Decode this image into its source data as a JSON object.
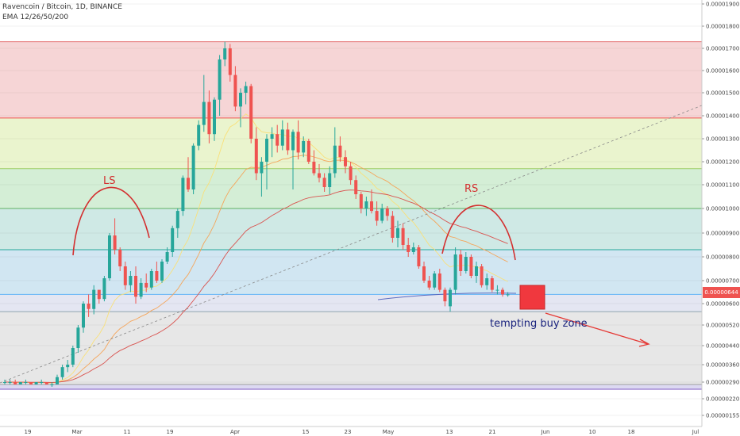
{
  "header": {
    "symbol": "Ravencoin / Bitcoin, 1D, BINANCE",
    "indicator": "EMA 12/26/50/200"
  },
  "annotations": {
    "left_shoulder": "LS",
    "right_shoulder": "RS",
    "buy_zone": "tempting buy zone"
  },
  "colors": {
    "up_candle": "#26a69a",
    "down_candle": "#ef5350",
    "annotation": "#d32f2f",
    "buy_zone_box": "#f0383e"
  },
  "chart_data": {
    "type": "candlestick",
    "title": "Ravencoin / Bitcoin, 1D, BINANCE",
    "last_price": "0.00000644",
    "price_axis": {
      "ticks": [
        "0.00001900",
        "0.00001800",
        "0.00001700",
        "0.00001600",
        "0.00001500",
        "0.00001400",
        "0.00001300",
        "0.00001200",
        "0.00001100",
        "0.00001000",
        "0.00000900",
        "0.00000800",
        "0.00000700",
        "0.00000600",
        "0.00000520",
        "0.00000440",
        "0.00000360",
        "0.00000290",
        "0.00000220",
        "0.00000155"
      ]
    },
    "date_axis": {
      "ticks": [
        "19",
        "Mar",
        "11",
        "19",
        "Apr",
        "15",
        "23",
        "May",
        "13",
        "21",
        "Jun",
        "10",
        "18",
        "Jul"
      ]
    },
    "fib_levels": [
      1.73e-05,
      1.39e-05,
      1.17e-05,
      1e-05,
      8.3e-06,
      6.4e-06,
      5.7e-06,
      2.8e-06,
      2.6e-06
    ],
    "fib_zone_colors": [
      "#f6d5d6",
      "#eaf4ce",
      "#d4eed6",
      "#cfe9e5",
      "#d1e6f2",
      "#e4e6f2",
      "#e7e7e7",
      "#dcd9f1"
    ],
    "fib_line_colors": [
      "#e57373",
      "#ef5350",
      "#9ccc65",
      "#66bb6a",
      "#26a69a",
      "#64b5f6",
      "#90a4ae",
      "#9e9e9e",
      "#7e57c2"
    ],
    "candles": [
      [
        2.9e-06,
        3e-06,
        2.8e-06,
        2.9e-06
      ],
      [
        2.9e-06,
        3e-06,
        2.8e-06,
        2.9e-06
      ],
      [
        2.9e-06,
        3e-06,
        2.8e-06,
        2.8e-06
      ],
      [
        2.8e-06,
        2.9e-06,
        2.8e-06,
        2.9e-06
      ],
      [
        2.9e-06,
        3e-06,
        2.8e-06,
        2.9e-06
      ],
      [
        2.9e-06,
        2.9e-06,
        2.8e-06,
        2.8e-06
      ],
      [
        2.8e-06,
        2.9e-06,
        2.8e-06,
        2.9e-06
      ],
      [
        2.9e-06,
        3e-06,
        2.8e-06,
        2.9e-06
      ],
      [
        2.9e-06,
        2.9e-06,
        2.8e-06,
        2.8e-06
      ],
      [
        2.8e-06,
        2.9e-06,
        2.7e-06,
        2.8e-06
      ],
      [
        2.8e-06,
        3.2e-06,
        2.8e-06,
        3.1e-06
      ],
      [
        3.1e-06,
        3.6e-06,
        3e-06,
        3.5e-06
      ],
      [
        3.5e-06,
        3.8e-06,
        3.3e-06,
        3.6e-06
      ],
      [
        3.6e-06,
        4.4e-06,
        3.5e-06,
        4.3e-06
      ],
      [
        4.3e-06,
        5.2e-06,
        4.1e-06,
        5.1e-06
      ],
      [
        5.1e-06,
        6.1e-06,
        4.9e-06,
        6e-06
      ],
      [
        6e-06,
        6.4e-06,
        5.5e-06,
        5.8e-06
      ],
      [
        5.8e-06,
        6.8e-06,
        5.6e-06,
        6.6e-06
      ],
      [
        6.6e-06,
        6.5e-06,
        6e-06,
        6.2e-06
      ],
      [
        6.2e-06,
        7.2e-06,
        6.1e-06,
        7.1e-06
      ],
      [
        7.1e-06,
        9e-06,
        7e-06,
        8.9e-06
      ],
      [
        8.9e-06,
        9.6e-06,
        8.1e-06,
        8.3e-06
      ],
      [
        8.3e-06,
        8.4e-06,
        7.4e-06,
        7.6e-06
      ],
      [
        7.6e-06,
        7.8e-06,
        6.6e-06,
        6.8e-06
      ],
      [
        6.8e-06,
        7.4e-06,
        6.5e-06,
        7.2e-06
      ],
      [
        7.2e-06,
        7.6e-06,
        6e-06,
        6.3e-06
      ],
      [
        6.3e-06,
        7.1e-06,
        6.2e-06,
        6.9e-06
      ],
      [
        6.9e-06,
        7.3e-06,
        6.5e-06,
        6.7e-06
      ],
      [
        6.7e-06,
        7.5e-06,
        6.6e-06,
        7.4e-06
      ],
      [
        7.4e-06,
        7.8e-06,
        6.9e-06,
        7e-06
      ],
      [
        7e-06,
        7.9e-06,
        6.9e-06,
        7.8e-06
      ],
      [
        7.8e-06,
        8.4e-06,
        7.7e-06,
        8.2e-06
      ],
      [
        8.2e-06,
        9.3e-06,
        8e-06,
        9.2e-06
      ],
      [
        9.2e-06,
        1e-05,
        8.8e-06,
        9.9e-06
      ],
      [
        9.9e-06,
        1.14e-05,
        9.7e-06,
        1.13e-05
      ],
      [
        1.13e-05,
        1.22e-05,
        1.07e-05,
        1.08e-05
      ],
      [
        1.08e-05,
        1.28e-05,
        1.06e-05,
        1.27e-05
      ],
      [
        1.27e-05,
        1.38e-05,
        1.25e-05,
        1.36e-05
      ],
      [
        1.36e-05,
        1.58e-05,
        1.33e-05,
        1.46e-05
      ],
      [
        1.46e-05,
        1.51e-05,
        1.28e-05,
        1.32e-05
      ],
      [
        1.32e-05,
        1.48e-05,
        1.29e-05,
        1.47e-05
      ],
      [
        1.47e-05,
        1.67e-05,
        1.4e-05,
        1.65e-05
      ],
      [
        1.65e-05,
        1.73e-05,
        1.62e-05,
        1.7e-05
      ],
      [
        1.7e-05,
        1.72e-05,
        1.55e-05,
        1.58e-05
      ],
      [
        1.58e-05,
        1.62e-05,
        1.42e-05,
        1.44e-05
      ],
      [
        1.44e-05,
        1.52e-05,
        1.35e-05,
        1.5e-05
      ],
      [
        1.5e-05,
        1.55e-05,
        1.45e-05,
        1.53e-05
      ],
      [
        1.53e-05,
        1.54e-05,
        1.28e-05,
        1.3e-05
      ],
      [
        1.3e-05,
        1.35e-05,
        1.12e-05,
        1.15e-05
      ],
      [
        1.15e-05,
        1.22e-05,
        1.05e-05,
        1.2e-05
      ],
      [
        1.2e-05,
        1.32e-05,
        1.08e-05,
        1.3e-05
      ],
      [
        1.3e-05,
        1.35e-05,
        1.22e-05,
        1.32e-05
      ],
      [
        1.32e-05,
        1.36e-05,
        1.24e-05,
        1.27e-05
      ],
      [
        1.27e-05,
        1.38e-05,
        1.25e-05,
        1.34e-05
      ],
      [
        1.34e-05,
        1.37e-05,
        1.23e-05,
        1.25e-05
      ],
      [
        1.25e-05,
        1.34e-05,
        1.08e-05,
        1.33e-05
      ],
      [
        1.33e-05,
        1.38e-05,
        1.21e-05,
        1.24e-05
      ],
      [
        1.24e-05,
        1.31e-05,
        1.22e-05,
        1.29e-05
      ],
      [
        1.29e-05,
        1.3e-05,
        1.19e-05,
        1.2e-05
      ],
      [
        1.2e-05,
        1.25e-05,
        1.14e-05,
        1.15e-05
      ],
      [
        1.15e-05,
        1.19e-05,
        1.11e-05,
        1.13e-05
      ],
      [
        1.13e-05,
        1.15e-05,
        1.07e-05,
        1.09e-05
      ],
      [
        1.09e-05,
        1.18e-05,
        1.06e-05,
        1.15e-05
      ],
      [
        1.15e-05,
        1.35e-05,
        1.13e-05,
        1.27e-05
      ],
      [
        1.27e-05,
        1.31e-05,
        1.2e-05,
        1.22e-05
      ],
      [
        1.22e-05,
        1.25e-05,
        1.15e-05,
        1.18e-05
      ],
      [
        1.18e-05,
        1.2e-05,
        1.1e-05,
        1.12e-05
      ],
      [
        1.12e-05,
        1.14e-05,
        1.04e-05,
        1.06e-05
      ],
      [
        1.06e-05,
        1.07e-05,
        9.8e-06,
        1e-05
      ],
      [
        1e-05,
        1.05e-05,
        9.7e-06,
        1.03e-05
      ],
      [
        1.03e-05,
        1.08e-05,
        9.8e-06,
        9.9e-06
      ],
      [
        9.9e-06,
        1.03e-05,
        9.3e-06,
        9.5e-06
      ],
      [
        9.5e-06,
        1.02e-05,
        9.4e-06,
        1e-05
      ],
      [
        1e-05,
        1.01e-05,
        9.5e-06,
        9.7e-06
      ],
      [
        9.7e-06,
        9.9e-06,
        8.6e-06,
        8.8e-06
      ],
      [
        8.8e-06,
        9.5e-06,
        8.4e-06,
        9.2e-06
      ],
      [
        9.2e-06,
        9.4e-06,
        8.3e-06,
        8.5e-06
      ],
      [
        8.5e-06,
        8.8e-06,
        8e-06,
        8.2e-06
      ],
      [
        8.2e-06,
        8.6e-06,
        8.1e-06,
        8.4e-06
      ],
      [
        8.4e-06,
        8.5e-06,
        7.5e-06,
        7.6e-06
      ],
      [
        7.6e-06,
        7.8e-06,
        6.9e-06,
        7e-06
      ],
      [
        7e-06,
        7.2e-06,
        6.6e-06,
        6.7e-06
      ],
      [
        6.7e-06,
        7.4e-06,
        6.6e-06,
        7.3e-06
      ],
      [
        7.3e-06,
        7.5e-06,
        6.5e-06,
        6.6e-06
      ],
      [
        6.6e-06,
        6.7e-06,
        5.9e-06,
        6.1e-06
      ],
      [
        5.9e-06,
        6.7e-06,
        5.7e-06,
        6.6e-06
      ],
      [
        6.6e-06,
        8.4e-06,
        6.4e-06,
        8.1e-06
      ],
      [
        8.1e-06,
        8.3e-06,
        7.2e-06,
        7.4e-06
      ],
      [
        7.4e-06,
        8.2e-06,
        7.3e-06,
        8e-06
      ],
      [
        8e-06,
        8.1e-06,
        7.1e-06,
        7.2e-06
      ],
      [
        7.2e-06,
        7.8e-06,
        6.9e-06,
        7.6e-06
      ],
      [
        7.6e-06,
        7.7e-06,
        6.7e-06,
        6.8e-06
      ],
      [
        6.8e-06,
        7.3e-06,
        6.6e-06,
        7.1e-06
      ],
      [
        7.1e-06,
        7.2e-06,
        6.5e-06,
        6.6e-06
      ],
      [
        6.6e-06,
        6.8e-06,
        6.4e-06,
        6.6e-06
      ],
      [
        6.6e-06,
        6.7e-06,
        6.3e-06,
        6.4e-06
      ],
      [
        6.4e-06,
        6.5e-06,
        6.3e-06,
        6.4e-06
      ]
    ]
  }
}
